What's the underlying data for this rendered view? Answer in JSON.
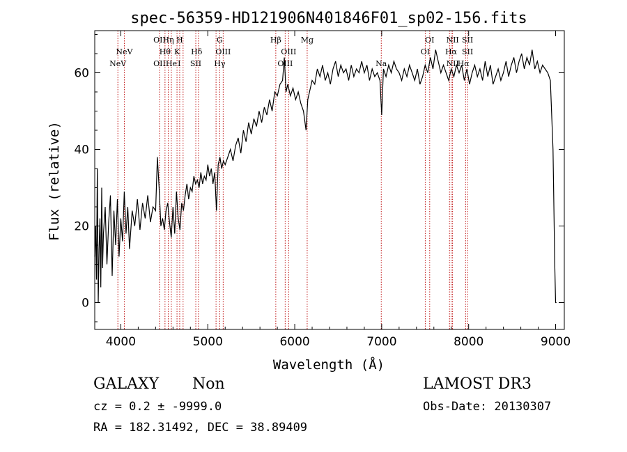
{
  "chart_data": {
    "type": "line",
    "title": "spec-56359-HD121906N401846F01_sp02-156.fits",
    "xlabel": "Wavelength (Å)",
    "ylabel": "Flux (relative)",
    "xlim": [
      3700,
      9100
    ],
    "ylim": [
      -7,
      71
    ],
    "xticks": [
      4000,
      5000,
      6000,
      7000,
      8000,
      9000
    ],
    "yticks": [
      0,
      20,
      40,
      60
    ],
    "grid": false,
    "series": [
      {
        "name": "spectrum",
        "x": [
          3700,
          3710,
          3720,
          3730,
          3740,
          3750,
          3760,
          3770,
          3780,
          3790,
          3800,
          3820,
          3840,
          3860,
          3880,
          3900,
          3920,
          3940,
          3960,
          3980,
          4000,
          4020,
          4040,
          4060,
          4080,
          4100,
          4130,
          4160,
          4190,
          4220,
          4250,
          4280,
          4310,
          4340,
          4370,
          4400,
          4420,
          4440,
          4460,
          4480,
          4500,
          4520,
          4540,
          4560,
          4580,
          4600,
          4620,
          4640,
          4660,
          4680,
          4700,
          4720,
          4740,
          4760,
          4780,
          4800,
          4820,
          4840,
          4860,
          4880,
          4900,
          4920,
          4940,
          4960,
          4980,
          5000,
          5020,
          5040,
          5060,
          5080,
          5100,
          5120,
          5140,
          5160,
          5180,
          5200,
          5230,
          5260,
          5290,
          5320,
          5350,
          5380,
          5410,
          5440,
          5470,
          5500,
          5530,
          5560,
          5590,
          5620,
          5650,
          5680,
          5710,
          5740,
          5770,
          5800,
          5830,
          5860,
          5880,
          5900,
          5920,
          5950,
          5980,
          6010,
          6040,
          6070,
          6100,
          6130,
          6150,
          6180,
          6200,
          6230,
          6260,
          6290,
          6320,
          6350,
          6380,
          6410,
          6440,
          6470,
          6500,
          6530,
          6560,
          6590,
          6620,
          6650,
          6680,
          6710,
          6740,
          6770,
          6800,
          6830,
          6860,
          6890,
          6920,
          6950,
          6980,
          7000,
          7020,
          7050,
          7080,
          7110,
          7140,
          7170,
          7200,
          7230,
          7260,
          7290,
          7320,
          7350,
          7380,
          7410,
          7440,
          7470,
          7500,
          7530,
          7560,
          7590,
          7620,
          7650,
          7680,
          7710,
          7740,
          7770,
          7800,
          7830,
          7860,
          7890,
          7920,
          7950,
          7980,
          8010,
          8040,
          8070,
          8100,
          8130,
          8160,
          8190,
          8220,
          8250,
          8280,
          8310,
          8340,
          8370,
          8400,
          8430,
          8460,
          8490,
          8520,
          8550,
          8580,
          8610,
          8640,
          8670,
          8700,
          8730,
          8760,
          8790,
          8820,
          8850,
          8880,
          8910,
          8940,
          8970,
          8990,
          9000,
          9010
        ],
        "values": [
          12,
          20,
          6,
          35,
          0,
          14,
          22,
          4,
          30,
          9,
          18,
          25,
          10,
          21,
          28,
          7,
          24,
          15,
          27,
          12,
          22,
          16,
          29,
          18,
          25,
          14,
          24,
          20,
          27,
          19,
          26,
          22,
          28,
          21,
          25,
          24,
          38,
          30,
          20,
          22,
          19,
          24,
          26,
          21,
          17,
          25,
          18,
          29,
          22,
          19,
          26,
          24,
          28,
          31,
          27,
          30,
          29,
          33,
          31,
          32,
          30,
          34,
          31,
          33,
          32,
          36,
          33,
          35,
          31,
          34,
          24,
          36,
          38,
          35,
          37,
          36,
          38,
          40,
          37,
          41,
          43,
          39,
          45,
          42,
          47,
          44,
          48,
          46,
          50,
          47,
          51,
          49,
          53,
          50,
          55,
          54,
          57,
          58,
          64,
          55,
          57,
          54,
          56,
          53,
          55,
          52,
          50,
          45,
          53,
          56,
          58,
          57,
          61,
          59,
          62,
          58,
          60,
          57,
          61,
          63,
          59,
          62,
          60,
          61,
          58,
          62,
          59,
          61,
          60,
          63,
          60,
          62,
          58,
          61,
          59,
          60,
          58,
          49,
          61,
          59,
          62,
          60,
          63,
          61,
          60,
          58,
          61,
          59,
          62,
          60,
          58,
          61,
          57,
          59,
          62,
          60,
          64,
          61,
          66,
          63,
          60,
          62,
          60,
          58,
          61,
          59,
          62,
          60,
          62,
          58,
          61,
          57,
          60,
          62,
          59,
          61,
          58,
          63,
          59,
          62,
          57,
          59,
          61,
          58,
          60,
          63,
          59,
          62,
          64,
          60,
          63,
          65,
          61,
          64,
          62,
          66,
          61,
          63,
          60,
          62,
          61,
          60,
          58,
          40,
          10,
          0,
          0
        ]
      }
    ],
    "line_labels": [
      {
        "label": "NeV",
        "x": 3966,
        "row": 3
      },
      {
        "label": "NeV",
        "x": 4040,
        "row": 2
      },
      {
        "label": "OII",
        "x": 4445,
        "row": 1
      },
      {
        "label": "OII",
        "x": 4445,
        "row": 3
      },
      {
        "label": "Hη",
        "x": 4545,
        "row": 1
      },
      {
        "label": "Hθ",
        "x": 4508,
        "row": 2
      },
      {
        "label": "He",
        "x": 4581,
        "row": 3
      },
      {
        "label": "H",
        "x": 4677,
        "row": 1
      },
      {
        "label": "K",
        "x": 4646,
        "row": 2
      },
      {
        "label": "I",
        "x": 4672,
        "row": 3
      },
      {
        "label": "Hδ",
        "x": 4872,
        "row": 2
      },
      {
        "label": "SII",
        "x": 4862,
        "row": 3
      },
      {
        "label": "G",
        "x": 5137,
        "row": 1
      },
      {
        "label": "OIII",
        "x": 5177,
        "row": 2
      },
      {
        "label": "Hγ",
        "x": 5137,
        "row": 3
      },
      {
        "label": "Hβ",
        "x": 5782,
        "row": 1
      },
      {
        "label": "OIII",
        "x": 5930,
        "row": 2
      },
      {
        "label": "OIII",
        "x": 5890,
        "row": 3
      },
      {
        "label": "Mg",
        "x": 6143,
        "row": 1
      },
      {
        "label": "Na",
        "x": 6995,
        "row": 3
      },
      {
        "label": "OI",
        "x": 7552,
        "row": 1
      },
      {
        "label": "OI",
        "x": 7501,
        "row": 2
      },
      {
        "label": "NII",
        "x": 7815,
        "row": 1
      },
      {
        "label": "SII",
        "x": 7987,
        "row": 1
      },
      {
        "label": "Hα",
        "x": 7798,
        "row": 2
      },
      {
        "label": "SII",
        "x": 7987,
        "row": 2
      },
      {
        "label": "NII",
        "x": 7815,
        "row": 3
      },
      {
        "label": "Hα",
        "x": 7940,
        "row": 3
      }
    ],
    "line_positions": [
      3966,
      4040,
      4445,
      4508,
      4545,
      4581,
      4646,
      4677,
      4716,
      4862,
      4893,
      5095,
      5137,
      5177,
      5782,
      5890,
      5930,
      6143,
      6995,
      7501,
      7552,
      7780,
      7798,
      7815,
      7965,
      7987
    ]
  },
  "info": {
    "object_class": "GALAXY",
    "subclass": "Non",
    "survey": "LAMOST DR3",
    "cz": "cz = 0.2 ± -9999.0",
    "obs_date": "Obs-Date: 20130307",
    "radec": "RA = 182.31492, DEC =  38.89409"
  }
}
